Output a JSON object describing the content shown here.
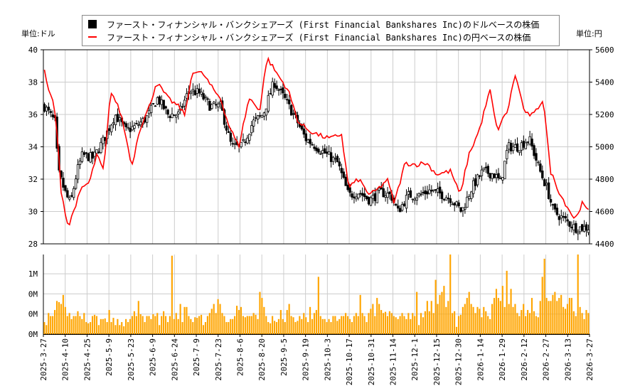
{
  "chart_data": {
    "type": "candlestick+line+bar",
    "legend": [
      {
        "label": "ファースト・フィナンシャル・バンクシェアーズ (First Financial Bankshares Inc)のドルベースの株価",
        "color": "#000000"
      },
      {
        "label": "ファースト・フィナンシャル・バンクシェアーズ (First Financial Bankshares Inc)の円ベースの株価",
        "color": "#ff0000"
      }
    ],
    "legend_placement": "top-center",
    "left_unit": "単位:ドル",
    "right_unit": "単位:円",
    "left_ylim": [
      28,
      40
    ],
    "left_ticks": [
      "28",
      "30",
      "32",
      "34",
      "36",
      "38",
      "40"
    ],
    "right_ylim": [
      4400,
      5600
    ],
    "right_ticks": [
      "4400",
      "4600",
      "4800",
      "5000",
      "5200",
      "5400",
      "5600"
    ],
    "volume_ylim": [
      0,
      1.32
    ],
    "volume_ticks": [
      {
        "v": 0,
        "label": "0M"
      },
      {
        "v": 0.333,
        "label": "0M"
      },
      {
        "v": 0.667,
        "label": "0M"
      },
      {
        "v": 1.0,
        "label": "1M"
      }
    ],
    "x_ticks": [
      "2025-3-27",
      "2025-4-10",
      "2025-4-25",
      "2025-5-9",
      "2025-5-23",
      "2025-6-9",
      "2025-6-24",
      "2025-7-9",
      "2025-7-23",
      "2025-8-6",
      "2025-8-20",
      "2025-9-5",
      "2025-9-19",
      "2025-10-3",
      "2025-10-17",
      "2025-10-31",
      "2025-11-14",
      "2025-12-1",
      "2025-12-15",
      "2025-12-30",
      "2026-1-14",
      "2026-1-29",
      "2026-2-12",
      "2026-2-27",
      "2026-3-13",
      "2026-3-27"
    ],
    "usd_close_keypoints": [
      [
        0,
        36.5
      ],
      [
        0.02,
        35.5
      ],
      [
        0.025,
        32.5
      ],
      [
        0.04,
        31
      ],
      [
        0.048,
        30.5
      ],
      [
        0.06,
        32.5
      ],
      [
        0.07,
        33.5
      ],
      [
        0.09,
        33.3
      ],
      [
        0.11,
        34.5
      ],
      [
        0.13,
        36
      ],
      [
        0.15,
        35
      ],
      [
        0.17,
        35.3
      ],
      [
        0.188,
        35.8
      ],
      [
        0.208,
        37
      ],
      [
        0.227,
        36
      ],
      [
        0.247,
        36
      ],
      [
        0.266,
        37.5
      ],
      [
        0.285,
        37.3
      ],
      [
        0.305,
        36.5
      ],
      [
        0.324,
        36.5
      ],
      [
        0.344,
        34
      ],
      [
        0.363,
        34
      ],
      [
        0.383,
        35.5
      ],
      [
        0.402,
        36
      ],
      [
        0.422,
        38
      ],
      [
        0.441,
        37
      ],
      [
        0.461,
        35.8
      ],
      [
        0.48,
        34.5
      ],
      [
        0.5,
        34
      ],
      [
        0.52,
        33.5
      ],
      [
        0.539,
        33
      ],
      [
        0.559,
        31
      ],
      [
        0.578,
        31.2
      ],
      [
        0.598,
        30.7
      ],
      [
        0.617,
        31.2
      ],
      [
        0.637,
        31
      ],
      [
        0.65,
        30
      ],
      [
        0.669,
        31
      ],
      [
        0.689,
        31
      ],
      [
        0.708,
        31.3
      ],
      [
        0.728,
        31.1
      ],
      [
        0.747,
        30.8
      ],
      [
        0.767,
        30
      ],
      [
        0.786,
        31.5
      ],
      [
        0.806,
        32.5
      ],
      [
        0.826,
        32.3
      ],
      [
        0.839,
        31.8
      ],
      [
        0.852,
        34
      ],
      [
        0.871,
        34
      ],
      [
        0.891,
        34.5
      ],
      [
        0.911,
        32.5
      ],
      [
        0.923,
        31.5
      ],
      [
        0.936,
        30
      ],
      [
        0.956,
        29.5
      ],
      [
        0.975,
        29
      ],
      [
        1,
        29
      ]
    ],
    "jpy_keypoints": [
      [
        0,
        5480
      ],
      [
        0.005,
        5370
      ],
      [
        0.018,
        5260
      ],
      [
        0.025,
        5000
      ],
      [
        0.031,
        4720
      ],
      [
        0.044,
        4500
      ],
      [
        0.057,
        4640
      ],
      [
        0.07,
        4750
      ],
      [
        0.083,
        4780
      ],
      [
        0.096,
        4950
      ],
      [
        0.109,
        4850
      ],
      [
        0.122,
        5350
      ],
      [
        0.141,
        5200
      ],
      [
        0.161,
        4880
      ],
      [
        0.174,
        5100
      ],
      [
        0.193,
        5250
      ],
      [
        0.206,
        5400
      ],
      [
        0.227,
        5300
      ],
      [
        0.246,
        5250
      ],
      [
        0.259,
        5200
      ],
      [
        0.272,
        5470
      ],
      [
        0.292,
        5450
      ],
      [
        0.311,
        5350
      ],
      [
        0.324,
        5300
      ],
      [
        0.337,
        5150
      ],
      [
        0.357,
        5000
      ],
      [
        0.376,
        5300
      ],
      [
        0.396,
        5230
      ],
      [
        0.409,
        5550
      ],
      [
        0.428,
        5450
      ],
      [
        0.448,
        5350
      ],
      [
        0.467,
        5150
      ],
      [
        0.487,
        5100
      ],
      [
        0.506,
        5070
      ],
      [
        0.526,
        5050
      ],
      [
        0.546,
        5080
      ],
      [
        0.559,
        4750
      ],
      [
        0.578,
        4800
      ],
      [
        0.598,
        4700
      ],
      [
        0.617,
        4750
      ],
      [
        0.63,
        4800
      ],
      [
        0.643,
        4650
      ],
      [
        0.663,
        4900
      ],
      [
        0.682,
        4890
      ],
      [
        0.702,
        4900
      ],
      [
        0.721,
        4830
      ],
      [
        0.747,
        4850
      ],
      [
        0.764,
        4700
      ],
      [
        0.78,
        4950
      ],
      [
        0.799,
        5100
      ],
      [
        0.819,
        5350
      ],
      [
        0.832,
        5100
      ],
      [
        0.852,
        5230
      ],
      [
        0.865,
        5450
      ],
      [
        0.884,
        5200
      ],
      [
        0.9,
        5200
      ],
      [
        0.917,
        5300
      ],
      [
        0.93,
        4850
      ],
      [
        0.949,
        4700
      ],
      [
        0.975,
        4550
      ],
      [
        0.988,
        4650
      ],
      [
        1,
        4600
      ]
    ],
    "volume_M": [
      0.2,
      0.15,
      0.35,
      0.3,
      0.3,
      0.4,
      0.55,
      0.53,
      0.5,
      0.65,
      0.45,
      0.3,
      0.35,
      0.25,
      0.3,
      0.3,
      0.38,
      0.3,
      0.25,
      0.35,
      0.2,
      0.18,
      0.2,
      0.3,
      0.32,
      0.3,
      0.15,
      0.25,
      0.25,
      0.26,
      0.2,
      0.4,
      0.2,
      0.27,
      0.15,
      0.25,
      0.15,
      0.2,
      0.13,
      0.25,
      0.2,
      0.25,
      0.3,
      0.38,
      0.3,
      0.55,
      0.33,
      0.3,
      0.2,
      0.3,
      0.3,
      0.25,
      0.33,
      0.3,
      0.35,
      0.15,
      0.3,
      0.38,
      0.3,
      0.2,
      0.3,
      1.3,
      0.25,
      0.35,
      0.25,
      0.5,
      0.2,
      0.45,
      0.45,
      0.3,
      0.25,
      0.2,
      0.28,
      0.27,
      0.3,
      0.32,
      0.15,
      0.2,
      0.3,
      0.35,
      0.42,
      0.5,
      0.35,
      0.58,
      0.5,
      0.35,
      0.3,
      0.2,
      0.2,
      0.25,
      0.25,
      0.3,
      0.47,
      0.4,
      0.45,
      0.3,
      0.28,
      0.3,
      0.3,
      0.3,
      0.35,
      0.32,
      0.25,
      0.7,
      0.6,
      0.45,
      0.3,
      0.2,
      0.18,
      0.3,
      0.22,
      0.2,
      0.25,
      0.4,
      0.25,
      0.2,
      0.4,
      0.5,
      0.3,
      0.28,
      0.2,
      0.22,
      0.3,
      0.25,
      0.35,
      0.28,
      0.2,
      0.45,
      0.25,
      0.35,
      0.4,
      0.95,
      0.3,
      0.25,
      0.25,
      0.2,
      0.25,
      0.2,
      0.3,
      0.3,
      0.22,
      0.25,
      0.3,
      0.3,
      0.35,
      0.3,
      0.25,
      0.2,
      0.3,
      0.35,
      0.3,
      0.65,
      0.35,
      0.3,
      0.2,
      0.35,
      0.42,
      0.5,
      0.3,
      0.6,
      0.5,
      0.4,
      0.35,
      0.37,
      0.3,
      0.38,
      0.35,
      0.3,
      0.28,
      0.25,
      0.3,
      0.35,
      0.3,
      0.25,
      0.35,
      0.25,
      0.35,
      0.3,
      0.7,
      0.15,
      0.35,
      0.28,
      0.38,
      0.55,
      0.38,
      0.55,
      0.35,
      0.9,
      0.5,
      0.65,
      0.7,
      0.8,
      0.45,
      0.55,
      1.32,
      0.35,
      0.38,
      0.12,
      0.3,
      0.32,
      0.45,
      0.5,
      0.6,
      0.7,
      0.5,
      0.45,
      0.35,
      0.45,
      0.42,
      0.28,
      0.45,
      0.38,
      0.3,
      0.25,
      0.5,
      0.6,
      0.75,
      0.6,
      0.55,
      0.8,
      0.45,
      1.05,
      0.5,
      0.75,
      0.45,
      0.5,
      0.35,
      0.3,
      0.4,
      0.5,
      0.3,
      0.4,
      0.35,
      0.6,
      0.38,
      0.3,
      0.28,
      0.55,
      0.95,
      1.25,
      0.6,
      0.55,
      0.55,
      0.65,
      0.7,
      0.55,
      0.6,
      0.65,
      0.45,
      0.42,
      0.5,
      0.6,
      0.6,
      0.38,
      0.3,
      1.32,
      0.45,
      0.35,
      0.25,
      0.4,
      0.35
    ]
  }
}
